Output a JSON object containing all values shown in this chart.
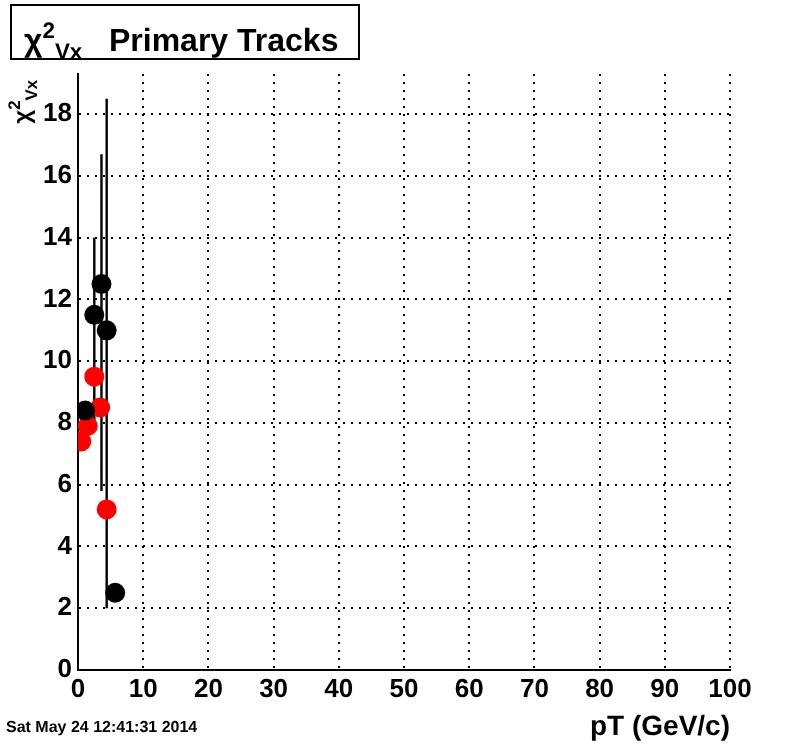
{
  "chart_data": {
    "type": "scatter",
    "title": "χ$^{2}$$_{Vx}$   Primary Tracks",
    "ylabel": "χ$^{2}$$_{Vx}$",
    "xlabel": "pT (GeV/c)",
    "annotations": [
      "Sat May 24 12:41:31 2014"
    ],
    "series": [
      {
        "color": "#000000",
        "x": [
          1.1,
          2.5,
          3.6,
          4.4,
          5.7
        ],
        "values": [
          8.4,
          11.5,
          12.5,
          11.0,
          2.5
        ],
        "errors": [
          null,
          [
            8,
            14
          ],
          [
            5.8,
            16.7
          ],
          [
            2,
            18.5
          ],
          null
        ]
      },
      {
        "color": "#ff0000",
        "x": [
          0.5,
          1.5,
          2.5,
          3.4,
          4.4
        ],
        "values": [
          7.4,
          7.9,
          9.5,
          8.5,
          5.2
        ]
      }
    ],
    "xlim": [
      0,
      100
    ],
    "xticks": [
      0,
      10,
      20,
      30,
      40,
      50,
      60,
      70,
      80,
      90,
      100
    ],
    "ylim": [
      0,
      19.3
    ],
    "yticks": [
      0,
      2,
      4,
      6,
      8,
      10,
      12,
      14,
      16,
      18
    ],
    "grid": true,
    "legend": false,
    "marker": "circle"
  }
}
